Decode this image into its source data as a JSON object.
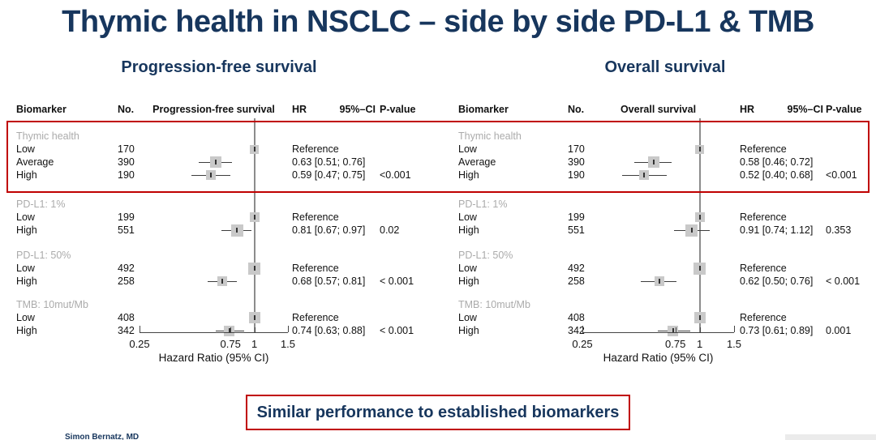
{
  "page": {
    "title": "Thymic health in NSCLC – side by side PD-L1 & TMB",
    "banner": "Similar performance to established biomarkers",
    "credit": "Simon Bernatz, MD",
    "colors": {
      "navy": "#17365D",
      "red": "#C00000",
      "group_gray": "#ABABAB",
      "square_gray": "#C9C9C9",
      "ref_line_gray": "#8C8C8C"
    }
  },
  "chart_data": [
    {
      "type": "forest",
      "panel_title": "Progression-free survival",
      "columns": {
        "biomarker": "Biomarker",
        "n": "No.",
        "plot": "Progression-free survival",
        "hr": "HR",
        "ci": "95%–CI",
        "p": "P-value"
      },
      "axis": {
        "scale": "log",
        "min": 0.25,
        "max": 1.5,
        "ref_line": 1,
        "ticks": [
          "0.25",
          "0.75",
          "1",
          "1.5"
        ],
        "tick_values": [
          0.25,
          0.75,
          1,
          1.5
        ],
        "label": "Hazard Ratio (95% CI)"
      },
      "groups": [
        {
          "name": "Thymic health",
          "highlighted": true,
          "rows": [
            {
              "label": "Low",
              "n": "170",
              "estimate": 1.0,
              "is_reference": true,
              "hr_ci_text": "Reference",
              "p": ""
            },
            {
              "label": "Average",
              "n": "390",
              "estimate": 0.63,
              "ci_low": 0.51,
              "ci_high": 0.76,
              "hr_ci_text": "0.63 [0.51; 0.76]",
              "p": ""
            },
            {
              "label": "High",
              "n": "190",
              "estimate": 0.59,
              "ci_low": 0.47,
              "ci_high": 0.75,
              "hr_ci_text": "0.59 [0.47; 0.75]",
              "p": "<0.001"
            }
          ]
        },
        {
          "name": "PD-L1: 1%",
          "highlighted": false,
          "rows": [
            {
              "label": "Low",
              "n": "199",
              "estimate": 1.0,
              "is_reference": true,
              "hr_ci_text": "Reference",
              "p": ""
            },
            {
              "label": "High",
              "n": "551",
              "estimate": 0.81,
              "ci_low": 0.67,
              "ci_high": 0.97,
              "hr_ci_text": "0.81 [0.67; 0.97]",
              "p": "0.02"
            }
          ]
        },
        {
          "name": "PD-L1: 50%",
          "highlighted": false,
          "rows": [
            {
              "label": "Low",
              "n": "492",
              "estimate": 1.0,
              "is_reference": true,
              "hr_ci_text": "Reference",
              "p": ""
            },
            {
              "label": "High",
              "n": "258",
              "estimate": 0.68,
              "ci_low": 0.57,
              "ci_high": 0.81,
              "hr_ci_text": "0.68 [0.57; 0.81]",
              "p": "< 0.001"
            }
          ]
        },
        {
          "name": "TMB: 10mut/Mb",
          "highlighted": false,
          "rows": [
            {
              "label": "Low",
              "n": "408",
              "estimate": 1.0,
              "is_reference": true,
              "hr_ci_text": "Reference",
              "p": ""
            },
            {
              "label": "High",
              "n": "342",
              "estimate": 0.74,
              "ci_low": 0.63,
              "ci_high": 0.88,
              "hr_ci_text": "0.74 [0.63; 0.88]",
              "p": "< 0.001"
            }
          ]
        }
      ]
    },
    {
      "type": "forest",
      "panel_title": "Overall survival",
      "columns": {
        "biomarker": "Biomarker",
        "n": "No.",
        "plot": "Overall survival",
        "hr": "HR",
        "ci": "95%–CI",
        "p": "P-value"
      },
      "axis": {
        "scale": "log",
        "min": 0.25,
        "max": 1.5,
        "ref_line": 1,
        "ticks": [
          "0.25",
          "0.75",
          "1",
          "1.5"
        ],
        "tick_values": [
          0.25,
          0.75,
          1,
          1.5
        ],
        "label": "Hazard Ratio (95% CI)"
      },
      "groups": [
        {
          "name": "Thymic health",
          "highlighted": true,
          "rows": [
            {
              "label": "Low",
              "n": "170",
              "estimate": 1.0,
              "is_reference": true,
              "hr_ci_text": "Reference",
              "p": ""
            },
            {
              "label": "Average",
              "n": "390",
              "estimate": 0.58,
              "ci_low": 0.46,
              "ci_high": 0.72,
              "hr_ci_text": "0.58 [0.46; 0.72]",
              "p": ""
            },
            {
              "label": "High",
              "n": "190",
              "estimate": 0.52,
              "ci_low": 0.4,
              "ci_high": 0.68,
              "hr_ci_text": "0.52 [0.40; 0.68]",
              "p": "<0.001"
            }
          ]
        },
        {
          "name": "PD-L1: 1%",
          "highlighted": false,
          "rows": [
            {
              "label": "Low",
              "n": "199",
              "estimate": 1.0,
              "is_reference": true,
              "hr_ci_text": "Reference",
              "p": ""
            },
            {
              "label": "High",
              "n": "551",
              "estimate": 0.91,
              "ci_low": 0.74,
              "ci_high": 1.12,
              "hr_ci_text": "0.91 [0.74; 1.12]",
              "p": "0.353"
            }
          ]
        },
        {
          "name": "PD-L1: 50%",
          "highlighted": false,
          "rows": [
            {
              "label": "Low",
              "n": "492",
              "estimate": 1.0,
              "is_reference": true,
              "hr_ci_text": "Reference",
              "p": ""
            },
            {
              "label": "High",
              "n": "258",
              "estimate": 0.62,
              "ci_low": 0.5,
              "ci_high": 0.76,
              "hr_ci_text": "0.62 [0.50; 0.76]",
              "p": "< 0.001"
            }
          ]
        },
        {
          "name": "TMB: 10mut/Mb",
          "highlighted": false,
          "rows": [
            {
              "label": "Low",
              "n": "408",
              "estimate": 1.0,
              "is_reference": true,
              "hr_ci_text": "Reference",
              "p": ""
            },
            {
              "label": "High",
              "n": "342",
              "estimate": 0.73,
              "ci_low": 0.61,
              "ci_high": 0.89,
              "hr_ci_text": "0.73 [0.61; 0.89]",
              "p": "0.001"
            }
          ]
        }
      ]
    }
  ]
}
